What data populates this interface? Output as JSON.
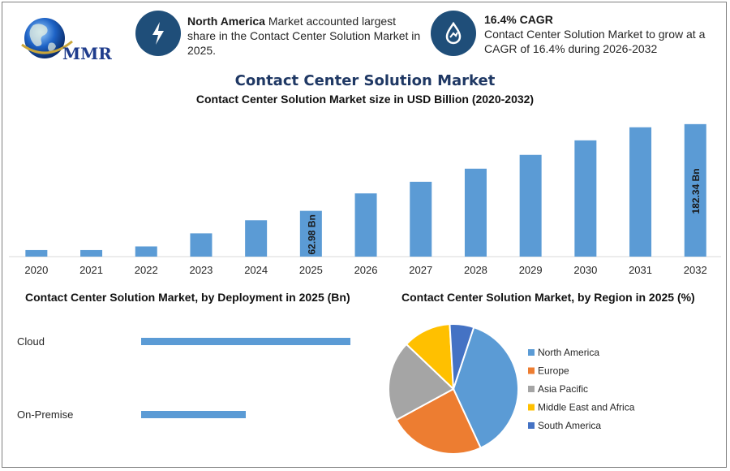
{
  "header": {
    "logo_text": "MMR",
    "info1": {
      "icon": "lightning-icon",
      "bold": "North America",
      "text": " Market accounted largest share in the Contact Center Solution Market in 2025."
    },
    "info2": {
      "icon": "growth-drop-icon",
      "title": "16.4% CAGR",
      "text": "Contact Center Solution Market to grow at a CAGR of 16.4% during 2026-2032"
    }
  },
  "colors": {
    "bar": "#5b9bd5",
    "navy": "#1f4e79",
    "title": "#1f3864"
  },
  "chart_data": [
    {
      "type": "bar",
      "title": "Contact Center Solution Market",
      "subtitle": "Contact Center Solution Market size in USD Billion (2020-2032)",
      "categories": [
        "2020",
        "2021",
        "2022",
        "2023",
        "2024",
        "2025",
        "2026",
        "2027",
        "2028",
        "2029",
        "2030",
        "2031",
        "2032"
      ],
      "values": [
        9,
        9,
        14,
        32,
        50,
        62.98,
        87,
        103,
        121,
        140,
        160,
        178,
        182.34
      ],
      "data_labels": {
        "2025": "62.98 Bn",
        "2032": "182.34 Bn"
      },
      "ylim": [
        0,
        190
      ],
      "xlabel": "",
      "ylabel": ""
    },
    {
      "type": "bar",
      "orientation": "horizontal",
      "title": "Contact Center Solution Market, by Deployment in 2025 (Bn)",
      "categories": [
        "Cloud",
        "On-Premise"
      ],
      "values": [
        43,
        21.5
      ],
      "xlim": [
        0,
        45
      ]
    },
    {
      "type": "pie",
      "title": "Contact Center Solution Market, by Region in 2025 (%)",
      "labels": [
        "North America",
        "Europe",
        "Asia Pacific",
        "Middle East and Africa",
        "South America"
      ],
      "values": [
        38,
        24,
        20,
        12,
        6
      ],
      "colors": [
        "#5b9bd5",
        "#ed7d31",
        "#a5a5a5",
        "#ffc000",
        "#4472c4"
      ],
      "legend": "right"
    }
  ]
}
